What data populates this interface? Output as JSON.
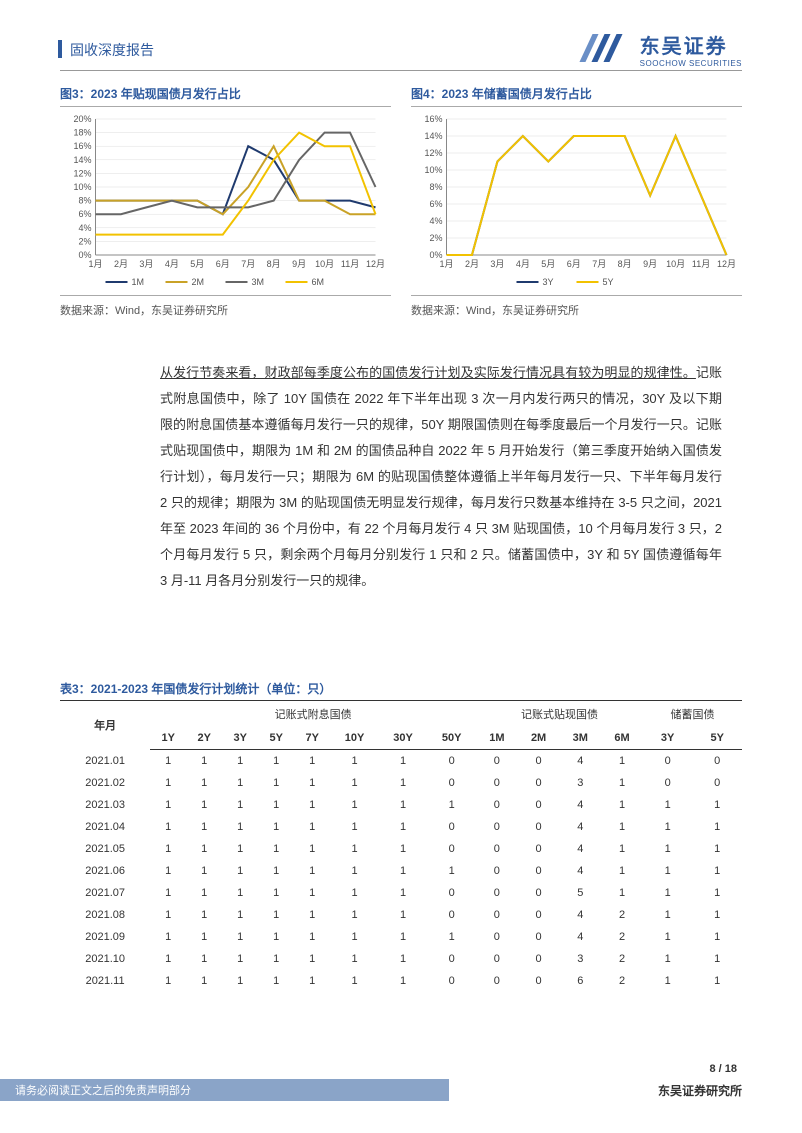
{
  "colors": {
    "accent": "#2e5a9e",
    "accent_light": "#6a8fc7",
    "text": "#333333",
    "muted": "#555555",
    "border": "#aaaaaa",
    "footer_bg": "#8aa4c8"
  },
  "header": {
    "report_type": "固收深度报告",
    "logo_cn": "东吴证券",
    "logo_en": "SOOCHOW SECURITIES"
  },
  "chart3": {
    "type": "line",
    "title": "图3：2023 年贴现国债月发行占比",
    "source": "数据来源：Wind，东吴证券研究所",
    "x_labels": [
      "1月",
      "2月",
      "3月",
      "4月",
      "5月",
      "6月",
      "7月",
      "8月",
      "9月",
      "10月",
      "11月",
      "12月"
    ],
    "ylim": [
      0,
      20
    ],
    "ytick_step": 2,
    "y_suffix": "%",
    "label_fontsize": 9,
    "series": [
      {
        "name": "1M",
        "color": "#1f3a6e",
        "width": 2,
        "values": [
          8,
          8,
          8,
          8,
          8,
          6,
          16,
          14,
          8,
          8,
          8,
          7
        ]
      },
      {
        "name": "2M",
        "color": "#c9a227",
        "width": 2,
        "values": [
          8,
          8,
          8,
          8,
          8,
          6,
          10,
          16,
          8,
          8,
          6,
          6
        ]
      },
      {
        "name": "3M",
        "color": "#666666",
        "width": 2,
        "values": [
          6,
          6,
          7,
          8,
          7,
          7,
          7,
          8,
          14,
          18,
          18,
          10
        ]
      },
      {
        "name": "6M",
        "color": "#f2c200",
        "width": 2,
        "values": [
          3,
          3,
          3,
          3,
          3,
          3,
          8,
          14,
          18,
          16,
          16,
          6
        ]
      }
    ]
  },
  "chart4": {
    "type": "line",
    "title": "图4：2023 年储蓄国债月发行占比",
    "source": "数据来源：Wind，东吴证券研究所",
    "x_labels": [
      "1月",
      "2月",
      "3月",
      "4月",
      "5月",
      "6月",
      "7月",
      "8月",
      "9月",
      "10月",
      "11月",
      "12月"
    ],
    "ylim": [
      0,
      16
    ],
    "ytick_step": 2,
    "y_suffix": "%",
    "label_fontsize": 9,
    "series": [
      {
        "name": "3Y",
        "color": "#1f3a6e",
        "width": 2,
        "values": [
          0,
          0,
          11,
          14,
          11,
          14,
          14,
          14,
          7,
          14,
          7,
          0
        ]
      },
      {
        "name": "5Y",
        "color": "#f2c200",
        "width": 2,
        "values": [
          0,
          0,
          11,
          14,
          11,
          14,
          14,
          14,
          7,
          14,
          7,
          0
        ]
      }
    ]
  },
  "body": {
    "underline": "从发行节奏来看，财政部每季度公布的国债发行计划及实际发行情况具有较为明显的规律性。",
    "rest": "记账式附息国债中，除了 10Y 国债在 2022 年下半年出现 3 次一月内发行两只的情况，30Y 及以下期限的附息国债基本遵循每月发行一只的规律，50Y 期限国债则在每季度最后一个月发行一只。记账式贴现国债中，期限为 1M 和 2M 的国债品种自 2022 年 5 月开始发行（第三季度开始纳入国债发行计划），每月发行一只；期限为 6M 的贴现国债整体遵循上半年每月发行一只、下半年每月发行 2 只的规律；期限为 3M 的贴现国债无明显发行规律，每月发行只数基本维持在 3-5 只之间，2021 年至 2023 年间的 36 个月份中，有 22 个月每月发行 4 只 3M 贴现国债，10 个月每月发行 3 只，2 个月每月发行 5 只，剩余两个月每月分别发行 1 只和 2 只。储蓄国债中，3Y 和 5Y 国债遵循每年 3 月-11 月各月分别发行一只的规律。"
  },
  "table": {
    "title": "表3：2021-2023 年国债发行计划统计（单位：只）",
    "col_ym": "年月",
    "group1": "记账式附息国债",
    "group2": "记账式贴现国债",
    "group3": "储蓄国债",
    "cols1": [
      "1Y",
      "2Y",
      "3Y",
      "5Y",
      "7Y",
      "10Y",
      "30Y",
      "50Y"
    ],
    "cols2": [
      "1M",
      "2M",
      "3M",
      "6M"
    ],
    "cols3": [
      "3Y",
      "5Y"
    ],
    "rows": [
      {
        "ym": "2021.01",
        "v": [
          1,
          1,
          1,
          1,
          1,
          1,
          1,
          0,
          0,
          0,
          4,
          1,
          0,
          0
        ]
      },
      {
        "ym": "2021.02",
        "v": [
          1,
          1,
          1,
          1,
          1,
          1,
          1,
          0,
          0,
          0,
          3,
          1,
          0,
          0
        ]
      },
      {
        "ym": "2021.03",
        "v": [
          1,
          1,
          1,
          1,
          1,
          1,
          1,
          1,
          0,
          0,
          4,
          1,
          1,
          1
        ]
      },
      {
        "ym": "2021.04",
        "v": [
          1,
          1,
          1,
          1,
          1,
          1,
          1,
          0,
          0,
          0,
          4,
          1,
          1,
          1
        ]
      },
      {
        "ym": "2021.05",
        "v": [
          1,
          1,
          1,
          1,
          1,
          1,
          1,
          0,
          0,
          0,
          4,
          1,
          1,
          1
        ]
      },
      {
        "ym": "2021.06",
        "v": [
          1,
          1,
          1,
          1,
          1,
          1,
          1,
          1,
          0,
          0,
          4,
          1,
          1,
          1
        ]
      },
      {
        "ym": "2021.07",
        "v": [
          1,
          1,
          1,
          1,
          1,
          1,
          1,
          0,
          0,
          0,
          5,
          1,
          1,
          1
        ]
      },
      {
        "ym": "2021.08",
        "v": [
          1,
          1,
          1,
          1,
          1,
          1,
          1,
          0,
          0,
          0,
          4,
          2,
          1,
          1
        ]
      },
      {
        "ym": "2021.09",
        "v": [
          1,
          1,
          1,
          1,
          1,
          1,
          1,
          1,
          0,
          0,
          4,
          2,
          1,
          1
        ]
      },
      {
        "ym": "2021.10",
        "v": [
          1,
          1,
          1,
          1,
          1,
          1,
          1,
          0,
          0,
          0,
          3,
          2,
          1,
          1
        ]
      },
      {
        "ym": "2021.11",
        "v": [
          1,
          1,
          1,
          1,
          1,
          1,
          1,
          0,
          0,
          0,
          6,
          2,
          1,
          1
        ]
      }
    ]
  },
  "footer": {
    "disclaimer": "请务必阅读正文之后的免责声明部分",
    "institute": "东吴证券研究所",
    "page": "8",
    "total": "18"
  }
}
